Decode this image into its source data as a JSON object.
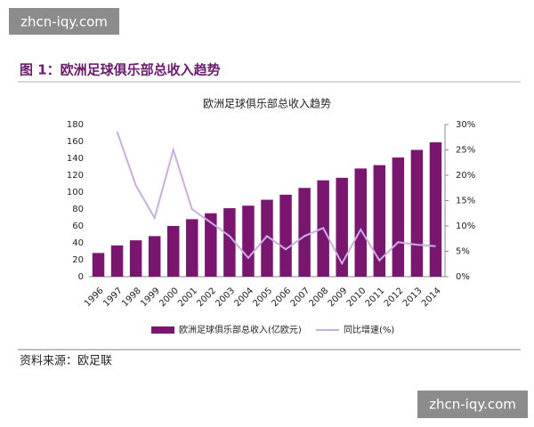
{
  "watermark_top": "zhcn-iqy.com",
  "watermark_bottom": "zhcn-iqy.com",
  "caption": "图 1：欧洲足球俱乐部总收入趋势",
  "source": "资料来源：欧足联",
  "chart_data": {
    "type": "bar_line",
    "title": "欧洲足球俱乐部总收入趋势",
    "categories": [
      "1996",
      "1997",
      "1998",
      "1999",
      "2000",
      "2001",
      "2002",
      "2003",
      "2004",
      "2005",
      "2006",
      "2007",
      "2008",
      "2009",
      "2010",
      "2011",
      "2012",
      "2013",
      "2014"
    ],
    "series": [
      {
        "name": "欧洲足球俱乐部总收入(亿欧元)",
        "type": "bar",
        "color": "#7a1670",
        "values": [
          28,
          37,
          43,
          48,
          60,
          68,
          75,
          81,
          84,
          91,
          97,
          105,
          114,
          117,
          128,
          132,
          141,
          150,
          159
        ]
      },
      {
        "name": "同比增速(%)",
        "type": "line",
        "axis": "y2",
        "color": "#c9aee3",
        "values": [
          null,
          28.6,
          18,
          11.6,
          25,
          13.3,
          10.7,
          8,
          3.7,
          8,
          5.4,
          8,
          9.6,
          2.6,
          9.3,
          3.2,
          6.8,
          6.3,
          6
        ]
      }
    ],
    "ylim": [
      0,
      180
    ],
    "yticks": [
      0,
      20,
      40,
      60,
      80,
      100,
      120,
      140,
      160,
      180
    ],
    "y2lim": [
      0,
      30
    ],
    "y2ticks": [
      {
        "value": 0,
        "label": "0%"
      },
      {
        "value": 5,
        "label": "5%"
      },
      {
        "value": 10,
        "label": "10%"
      },
      {
        "value": 15,
        "label": "15%"
      },
      {
        "value": 20,
        "label": "20%"
      },
      {
        "value": 25,
        "label": "25%"
      },
      {
        "value": 30,
        "label": "30%"
      }
    ]
  }
}
